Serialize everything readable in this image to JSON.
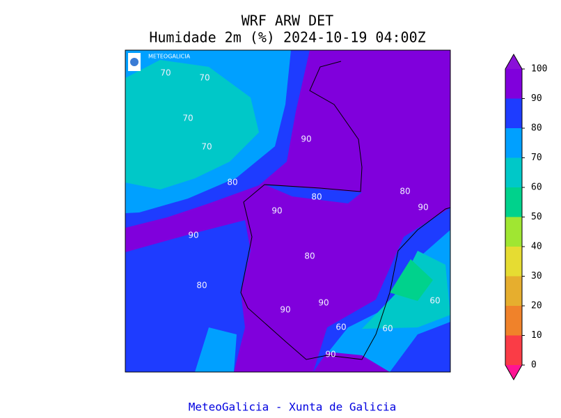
{
  "title": "WRF ARW DET",
  "subtitle": "Humidade 2m (%) 2024-10-19 04:00Z",
  "logo_text": "METEOGALICIA",
  "footer": "MeteoGalicia - Xunta de Galicia",
  "colorbar": {
    "ticks": [
      0,
      10,
      20,
      30,
      40,
      50,
      60,
      70,
      80,
      90,
      100
    ],
    "colors": [
      "#fa3c46",
      "#f0822a",
      "#e6ae2e",
      "#e6dc32",
      "#a0e632",
      "#00d28c",
      "#00c8c8",
      "#00a0ff",
      "#1e3cff",
      "#8000dc"
    ],
    "under_color": "#ff1493",
    "over_color": "#8a10d8"
  },
  "contour_labels": [
    70,
    70,
    70,
    70,
    80,
    80,
    80,
    80,
    80,
    90,
    90,
    90,
    90,
    90,
    90,
    90,
    60,
    60,
    60
  ]
}
